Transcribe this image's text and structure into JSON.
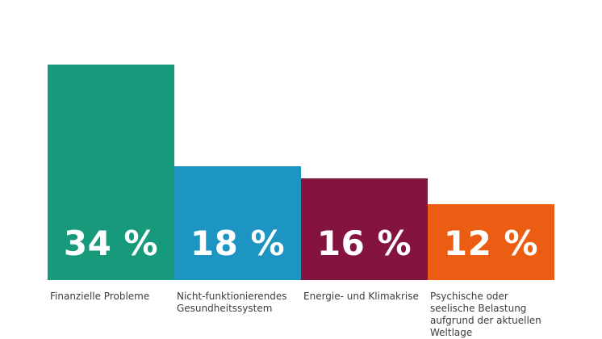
{
  "chart_data": {
    "type": "bar",
    "categories": [
      "Finanzielle Probleme",
      "Nicht-funktionierendes\nGesundheitssystem",
      "Energie- und Klimakrise",
      "Psychische oder\nseelische Belastung\naufgrund der aktuellen\nWeltlage"
    ],
    "values": [
      34,
      18,
      16,
      12
    ],
    "value_labels": [
      "34 %",
      "18 %",
      "16 %",
      "12 %"
    ],
    "colors": [
      "#179a7c",
      "#1c95c2",
      "#84133f",
      "#ec5d14"
    ],
    "ylim": [
      0,
      34
    ],
    "grid": false,
    "legend": "none"
  }
}
